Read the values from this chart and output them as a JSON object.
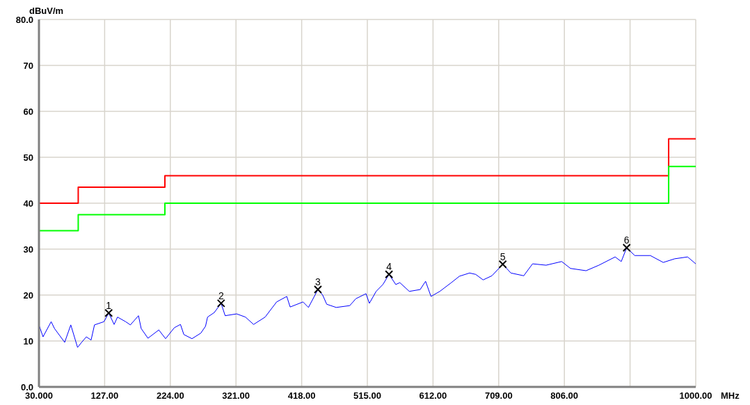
{
  "chart_data": {
    "type": "line",
    "xlabel": "MHz",
    "ylabel": "dBuV/m",
    "xlim": [
      30,
      1000
    ],
    "xticks": [
      {
        "value": 30,
        "label": "30.000"
      },
      {
        "value": 127,
        "label": "127.00"
      },
      {
        "value": 224,
        "label": "224.00"
      },
      {
        "value": 321,
        "label": "321.00"
      },
      {
        "value": 418,
        "label": "418.00"
      },
      {
        "value": 515,
        "label": "515.00"
      },
      {
        "value": 612,
        "label": "612.00"
      },
      {
        "value": 709,
        "label": "709.00"
      },
      {
        "value": 806,
        "label": "806.00"
      },
      {
        "value": 903,
        "label": null
      },
      {
        "value": 1000,
        "label": "1000.00"
      }
    ],
    "ylim": [
      0,
      80
    ],
    "yticks": [
      {
        "value": 0,
        "label": "0.0"
      },
      10,
      20,
      30,
      40,
      50,
      60,
      70,
      {
        "value": 80,
        "label": "80.0"
      }
    ],
    "grid": true,
    "series": [
      {
        "type": "step",
        "color": "#ff0000",
        "x": [
          30,
          88,
          216,
          960,
          1000
        ],
        "values": [
          40,
          43.5,
          46,
          54,
          54
        ]
      },
      {
        "type": "step",
        "color": "#00ff00",
        "x": [
          30,
          88,
          216,
          960,
          1000
        ],
        "values": [
          34,
          37.5,
          40,
          48,
          48
        ]
      },
      {
        "color": "#0000ff",
        "marker": "none",
        "x": [
          30,
          36,
          48,
          53,
          68,
          77,
          87,
          93,
          100,
          107,
          112,
          126,
          133,
          141,
          146,
          158,
          165,
          177,
          181,
          191,
          207,
          217,
          230,
          239,
          244,
          256,
          269,
          276,
          279,
          289,
          299,
          305,
          322,
          335,
          347,
          364,
          381,
          396,
          401,
          420,
          428,
          442,
          449,
          455,
          469,
          489,
          498,
          513,
          518,
          528,
          538,
          547,
          557,
          563,
          577,
          593,
          601,
          609,
          622,
          639,
          651,
          666,
          675,
          686,
          699,
          715,
          727,
          746,
          759,
          779,
          802,
          815,
          838,
          857,
          881,
          890,
          898,
          910,
          933,
          952,
          969,
          988,
          1000
        ],
        "values": [
          13.5,
          10.9,
          14.2,
          12.7,
          9.7,
          13.5,
          8.6,
          9.7,
          10.9,
          10.2,
          13.5,
          14.2,
          16.1,
          13.6,
          15.2,
          14.2,
          13.5,
          15.5,
          12.7,
          10.6,
          12.4,
          10.5,
          12.9,
          13.6,
          11.4,
          10.5,
          11.7,
          13.2,
          15.2,
          16.2,
          18.2,
          15.5,
          15.9,
          15.2,
          13.6,
          15.2,
          18.5,
          19.7,
          17.4,
          18.5,
          17.3,
          21.2,
          20.0,
          18.0,
          17.3,
          17.7,
          19.2,
          20.3,
          18.2,
          20.8,
          22.3,
          24.5,
          22.3,
          22.7,
          20.8,
          21.2,
          23.0,
          19.7,
          20.8,
          22.7,
          24.1,
          24.8,
          24.5,
          23.3,
          24.2,
          26.7,
          24.8,
          24.2,
          26.8,
          26.5,
          27.3,
          25.8,
          25.3,
          26.5,
          28.3,
          27.3,
          30.3,
          28.6,
          28.6,
          27.1,
          27.9,
          28.3,
          26.8
        ]
      },
      {
        "type": "scatter",
        "color": "#000000",
        "marker": "cross",
        "x": [
          133,
          299,
          442,
          547,
          715,
          898
        ],
        "values": [
          16.1,
          18.2,
          21.2,
          24.5,
          26.7,
          30.3
        ]
      }
    ],
    "annotations": [
      {
        "text": "1",
        "x": 133,
        "y": 16.1
      },
      {
        "text": "2",
        "x": 299,
        "y": 18.2
      },
      {
        "text": "3",
        "x": 442,
        "y": 21.2
      },
      {
        "text": "4",
        "x": 547,
        "y": 24.5
      },
      {
        "text": "5",
        "x": 715,
        "y": 26.7
      },
      {
        "text": "6",
        "x": 898,
        "y": 30.3
      }
    ]
  }
}
